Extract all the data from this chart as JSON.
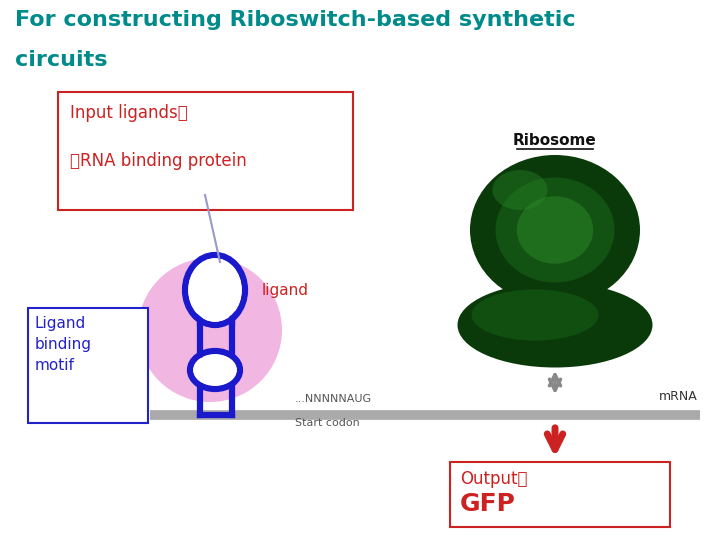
{
  "title_line1": "For constructing Riboswitch-based synthetic",
  "title_line2": "circuits",
  "title_color": "#008B8B",
  "bg_color": "#ffffff",
  "input_box_color": "#cc2222",
  "ligand_binding_box_color": "#2222cc",
  "ligand_label": "ligand",
  "ligand_label_color": "#cc2222",
  "ribosome_label": "Ribosome",
  "ribosome_color_dark": "#0a3a0a",
  "ribosome_color_mid": "#1a6a1a",
  "ribosome_color_light": "#2a8a2a",
  "arrow_color": "#888888",
  "mrna_color": "#aaaaaa",
  "mrna_label": "mRNA",
  "start_codon_text": "...NNNNNAUG",
  "start_codon_label": "Start codon",
  "output_box_color": "#cc2222",
  "down_arrow_color": "#cc2222",
  "rna_stem_color": "#1a1acc",
  "pink_circle_color": "#f0aadd",
  "line_pointer_color": "#9999cc"
}
